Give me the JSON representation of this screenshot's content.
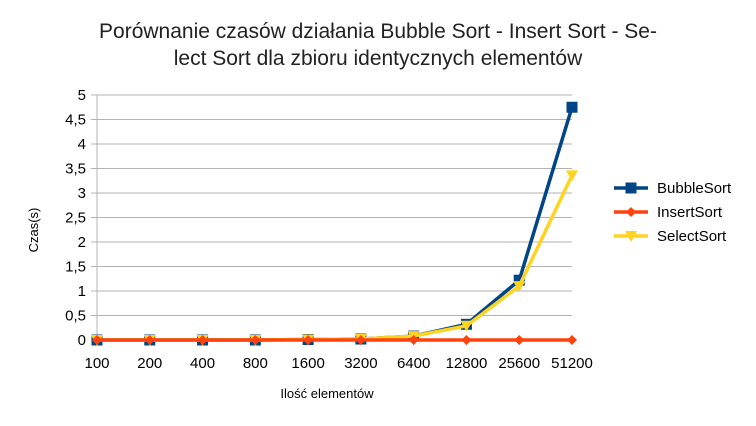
{
  "chart_data": {
    "type": "line",
    "title_lines": [
      "Porównanie czasów działania Bubble Sort - Insert Sort - Se-",
      "lect Sort dla zbioru identycznych elementów"
    ],
    "xlabel": "Ilość elementów",
    "ylabel": "Czas(s)",
    "categories": [
      "100",
      "200",
      "400",
      "800",
      "1600",
      "3200",
      "6400",
      "12800",
      "25600",
      "51200"
    ],
    "ylim": [
      0,
      5
    ],
    "yticks": [
      "0",
      "0,5",
      "1",
      "1,5",
      "2",
      "2,5",
      "3",
      "3,5",
      "4",
      "4,5",
      "5"
    ],
    "grid": "horizontal",
    "legend_position": "right",
    "series": [
      {
        "name": "BubbleSort",
        "color": "#004586",
        "marker": "square",
        "values": [
          0,
          0,
          0,
          0,
          0.01,
          0.02,
          0.08,
          0.32,
          1.22,
          4.75
        ]
      },
      {
        "name": "InsertSort",
        "color": "#ff420e",
        "marker": "diamond",
        "values": [
          0,
          0,
          0,
          0,
          0,
          0,
          0,
          0,
          0,
          0
        ]
      },
      {
        "name": "SelectSort",
        "color": "#ffd320",
        "marker": "triangle-down",
        "values": [
          0,
          0,
          0,
          0,
          0.01,
          0.02,
          0.08,
          0.29,
          1.1,
          3.36
        ]
      }
    ]
  }
}
